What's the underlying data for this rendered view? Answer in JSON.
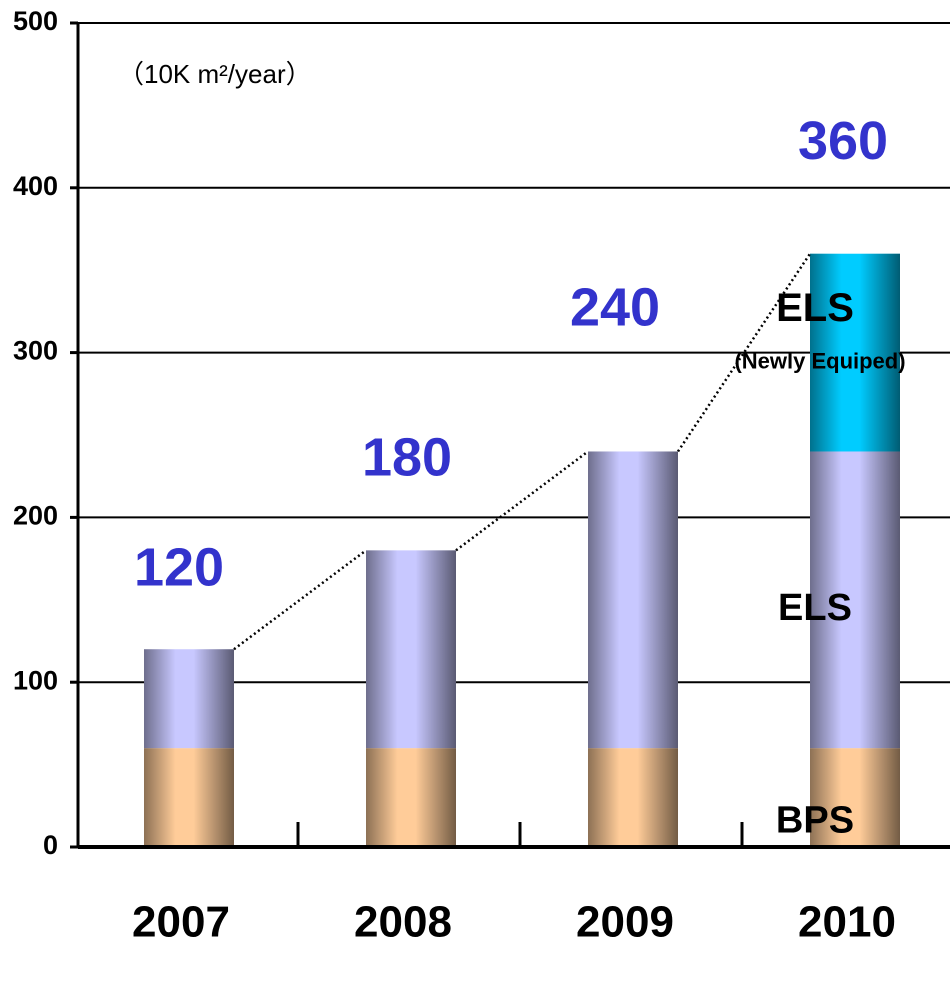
{
  "chart_data": {
    "type": "bar",
    "stacked": true,
    "unit_label": "（10K m²/year）",
    "categories": [
      "2007",
      "2008",
      "2009",
      "2010"
    ],
    "series": [
      {
        "name": "BPS",
        "color": "#ffcc99",
        "values": [
          60,
          60,
          60,
          60
        ]
      },
      {
        "name": "ELS",
        "color": "#c8c8ff",
        "values": [
          60,
          120,
          180,
          180
        ]
      },
      {
        "name": "ELS",
        "subname": "(Newly Equiped)",
        "color": "#00ccff",
        "values": [
          0,
          0,
          0,
          120
        ]
      }
    ],
    "total_labels": [
      "120",
      "180",
      "240",
      "360"
    ],
    "ylim": [
      0,
      500
    ],
    "yticks": [
      0,
      100,
      200,
      300,
      400,
      500
    ],
    "grid": true
  }
}
